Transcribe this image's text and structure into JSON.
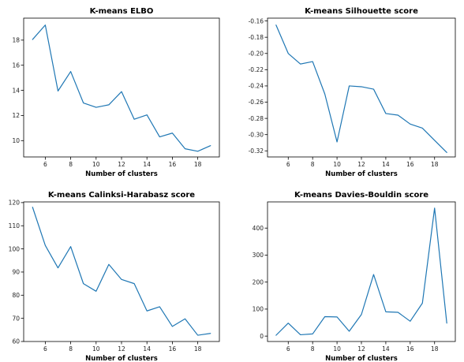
{
  "colors": {
    "line": "#1f77b4"
  },
  "chart_data": [
    {
      "type": "line",
      "title": "K-means ELBO",
      "xlabel": "Number of clusters",
      "ylabel": "",
      "x": [
        5,
        6,
        7,
        8,
        9,
        10,
        11,
        12,
        13,
        14,
        15,
        16,
        17,
        18,
        19
      ],
      "values": [
        18.05,
        19.2,
        13.95,
        15.5,
        13.0,
        12.65,
        12.85,
        13.9,
        11.7,
        12.05,
        10.3,
        10.6,
        9.35,
        9.15,
        9.6
      ],
      "xlim": [
        4.3,
        19.7
      ],
      "ylim": [
        8.7,
        19.75
      ],
      "xticks": [
        6,
        8,
        10,
        12,
        14,
        16,
        18
      ],
      "yticks": [
        10,
        12,
        14,
        16,
        18
      ],
      "xtick_labels": [
        "6",
        "8",
        "10",
        "12",
        "14",
        "16",
        "18"
      ],
      "ytick_labels": [
        "10",
        "12",
        "14",
        "16",
        "18"
      ],
      "grid": false
    },
    {
      "type": "line",
      "title": "K-means Silhouette score",
      "xlabel": "Number of clusters",
      "ylabel": "",
      "x": [
        5,
        6,
        7,
        8,
        9,
        10,
        11,
        12,
        13,
        14,
        15,
        16,
        17,
        18,
        19
      ],
      "values": [
        -0.165,
        -0.2,
        -0.213,
        -0.21,
        -0.25,
        -0.309,
        -0.24,
        -0.241,
        -0.244,
        -0.274,
        -0.276,
        -0.287,
        -0.292,
        -0.307,
        -0.322
      ],
      "xlim": [
        4.3,
        19.7
      ],
      "ylim": [
        -0.3275,
        -0.1565
      ],
      "xticks": [
        6,
        8,
        10,
        12,
        14,
        16,
        18
      ],
      "yticks": [
        -0.16,
        -0.18,
        -0.2,
        -0.22,
        -0.24,
        -0.26,
        -0.28,
        -0.3,
        -0.32
      ],
      "xtick_labels": [
        "6",
        "8",
        "10",
        "12",
        "14",
        "16",
        "18"
      ],
      "ytick_labels": [
        "-0.16",
        "-0.18",
        "-0.20",
        "-0.22",
        "-0.24",
        "-0.26",
        "-0.28",
        "-0.30",
        "-0.32"
      ],
      "grid": false
    },
    {
      "type": "line",
      "title": "K-means Calinksi-Harabasz score",
      "xlabel": "Number of clusters",
      "ylabel": "",
      "x": [
        5,
        6,
        7,
        8,
        9,
        10,
        11,
        12,
        13,
        14,
        15,
        16,
        17,
        18,
        19
      ],
      "values": [
        118.0,
        101.5,
        91.8,
        101.0,
        85.0,
        81.7,
        93.3,
        86.8,
        85.0,
        73.2,
        75.0,
        66.5,
        69.8,
        62.7,
        63.5
      ],
      "xlim": [
        4.3,
        19.7
      ],
      "ylim": [
        60.0,
        120.3
      ],
      "xticks": [
        6,
        8,
        10,
        12,
        14,
        16,
        18
      ],
      "yticks": [
        60,
        70,
        80,
        90,
        100,
        110,
        120
      ],
      "xtick_labels": [
        "6",
        "8",
        "10",
        "12",
        "14",
        "16",
        "18"
      ],
      "ytick_labels": [
        "60",
        "70",
        "80",
        "90",
        "100",
        "110",
        "120"
      ],
      "grid": false
    },
    {
      "type": "line",
      "title": "K-means Davies-Bouldin score",
      "xlabel": "Number of clusters",
      "ylabel": "",
      "x": [
        5,
        6,
        7,
        8,
        9,
        10,
        11,
        12,
        13,
        14,
        15,
        16,
        17,
        18,
        19
      ],
      "values": [
        3,
        48,
        5,
        8,
        72,
        71,
        18,
        80,
        228,
        90,
        88,
        55,
        122,
        474,
        48
      ],
      "xlim": [
        4.3,
        19.7
      ],
      "ylim": [
        -20,
        497
      ],
      "xticks": [
        6,
        8,
        10,
        12,
        14,
        16,
        18
      ],
      "yticks": [
        0,
        100,
        200,
        300,
        400
      ],
      "xtick_labels": [
        "6",
        "8",
        "10",
        "12",
        "14",
        "16",
        "18"
      ],
      "ytick_labels": [
        "0",
        "100",
        "200",
        "300",
        "400"
      ],
      "grid": false
    }
  ]
}
